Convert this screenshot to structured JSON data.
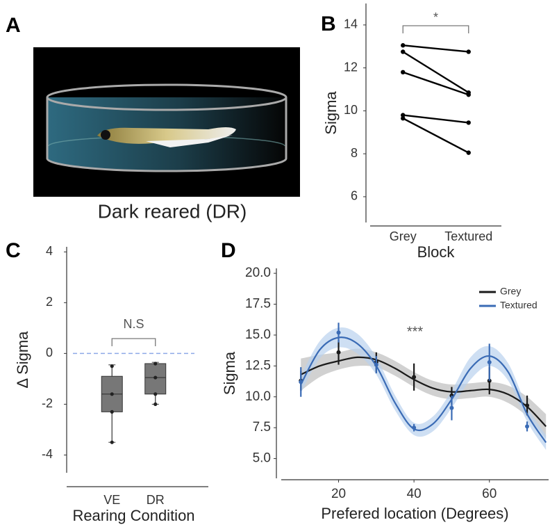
{
  "panel_a": {
    "panel_label": "A",
    "caption": "Dark reared (DR)"
  },
  "chart_data": [
    {
      "type": "line",
      "panel_label": "B",
      "categories": [
        "Grey",
        "Textured"
      ],
      "xlabel": "Block",
      "ylabel": "Sigma",
      "annotation": "*",
      "color": "#000000",
      "ylim": [
        4.8,
        15
      ],
      "yticks": [
        6,
        8,
        10,
        12,
        14
      ],
      "series": [
        {
          "values": [
            13.05,
            12.75
          ]
        },
        {
          "values": [
            12.75,
            10.85
          ]
        },
        {
          "values": [
            11.8,
            10.75
          ]
        },
        {
          "values": [
            9.8,
            9.45
          ]
        },
        {
          "values": [
            9.65,
            8.05
          ]
        }
      ]
    },
    {
      "type": "box",
      "panel_label": "C",
      "categories": [
        "VE",
        "DR"
      ],
      "xlabel": "Rearing Condition",
      "ylabel": "Δ Sigma",
      "annotation": "N.S",
      "color": "#777777",
      "ref_line": 0,
      "ref_color": "#8ea9e8",
      "ylim": [
        -4.7,
        4.2
      ],
      "yticks": [
        -4,
        -2,
        0,
        2,
        4
      ],
      "whisker_low": [
        -3.5,
        -2.0
      ],
      "q1": [
        -2.3,
        -1.6
      ],
      "median": [
        -1.6,
        -0.95
      ],
      "q3": [
        -0.9,
        -0.4
      ],
      "whisker_high": [
        -0.45,
        -0.35
      ],
      "points": [
        [
          -0.5,
          -1.6,
          -2.3,
          -3.5
        ],
        [
          -0.4,
          -0.95,
          -1.6,
          -2.0
        ]
      ]
    },
    {
      "type": "line",
      "panel_label": "D",
      "xlabel": "Prefered location (Degrees)",
      "ylabel": "Sigma",
      "annotation": "***",
      "legend": "upper right",
      "xlim": [
        4.8,
        75.7
      ],
      "xticks": [
        20,
        40,
        60
      ],
      "ylim": [
        3.4,
        20.4
      ],
      "yticks": [
        {
          "value": 5,
          "label": "5.0"
        },
        {
          "value": 7.5,
          "label": "7.5"
        },
        {
          "value": 10,
          "label": "10.0"
        },
        {
          "value": 12.5,
          "label": "12.5"
        },
        {
          "value": 15,
          "label": "15.0"
        },
        {
          "value": 17.5,
          "label": "17.5"
        },
        {
          "value": 20,
          "label": "20.0"
        }
      ],
      "x": [
        10,
        15,
        20,
        25,
        30,
        35,
        40,
        45,
        50,
        55,
        60,
        65,
        70,
        75
      ],
      "series": [
        {
          "name": "Grey",
          "color": "#1a1a1a",
          "band_color": "#bdbdbd",
          "values": [
            11.8,
            12.5,
            12.9,
            13.2,
            13.0,
            12.3,
            11.4,
            10.7,
            10.4,
            10.5,
            10.6,
            10.2,
            9.2,
            7.6
          ],
          "upper": [
            13.1,
            13.4,
            13.6,
            13.9,
            13.6,
            12.9,
            12.0,
            11.3,
            11.0,
            11.1,
            11.2,
            10.9,
            10.0,
            8.6
          ],
          "lower": [
            10.5,
            11.6,
            12.2,
            12.5,
            12.4,
            11.7,
            10.8,
            10.1,
            9.8,
            9.9,
            10.0,
            9.5,
            8.4,
            6.6
          ],
          "points_x": [
            10,
            20,
            30,
            40,
            50,
            60,
            70
          ],
          "points": [
            11.3,
            13.6,
            12.8,
            11.6,
            10.1,
            11.3,
            9.3
          ],
          "errors": [
            0.8,
            1.0,
            0.8,
            1.1,
            0.7,
            1.1,
            0.8
          ]
        },
        {
          "name": "Textured",
          "color": "#3a6bb5",
          "band_color": "#b9d1ee",
          "values": [
            11.0,
            13.8,
            14.8,
            14.3,
            12.5,
            9.5,
            7.4,
            7.8,
            9.8,
            12.3,
            13.3,
            12.0,
            8.6,
            6.3
          ],
          "upper": [
            11.7,
            14.5,
            15.6,
            15.1,
            13.2,
            10.1,
            7.9,
            8.4,
            10.5,
            13.2,
            14.1,
            12.7,
            9.2,
            6.9
          ],
          "lower": [
            10.3,
            13.1,
            14.0,
            13.5,
            11.8,
            8.9,
            6.9,
            7.2,
            9.1,
            11.4,
            12.5,
            11.3,
            8.0,
            5.7
          ],
          "points_x": [
            10,
            20,
            30,
            40,
            50,
            60,
            70
          ],
          "points": [
            11.2,
            15.2,
            12.6,
            7.5,
            9.1,
            12.8,
            7.6
          ],
          "errors": [
            1.2,
            0.8,
            0.7,
            0.3,
            1.0,
            1.5,
            0.4
          ]
        }
      ]
    }
  ]
}
